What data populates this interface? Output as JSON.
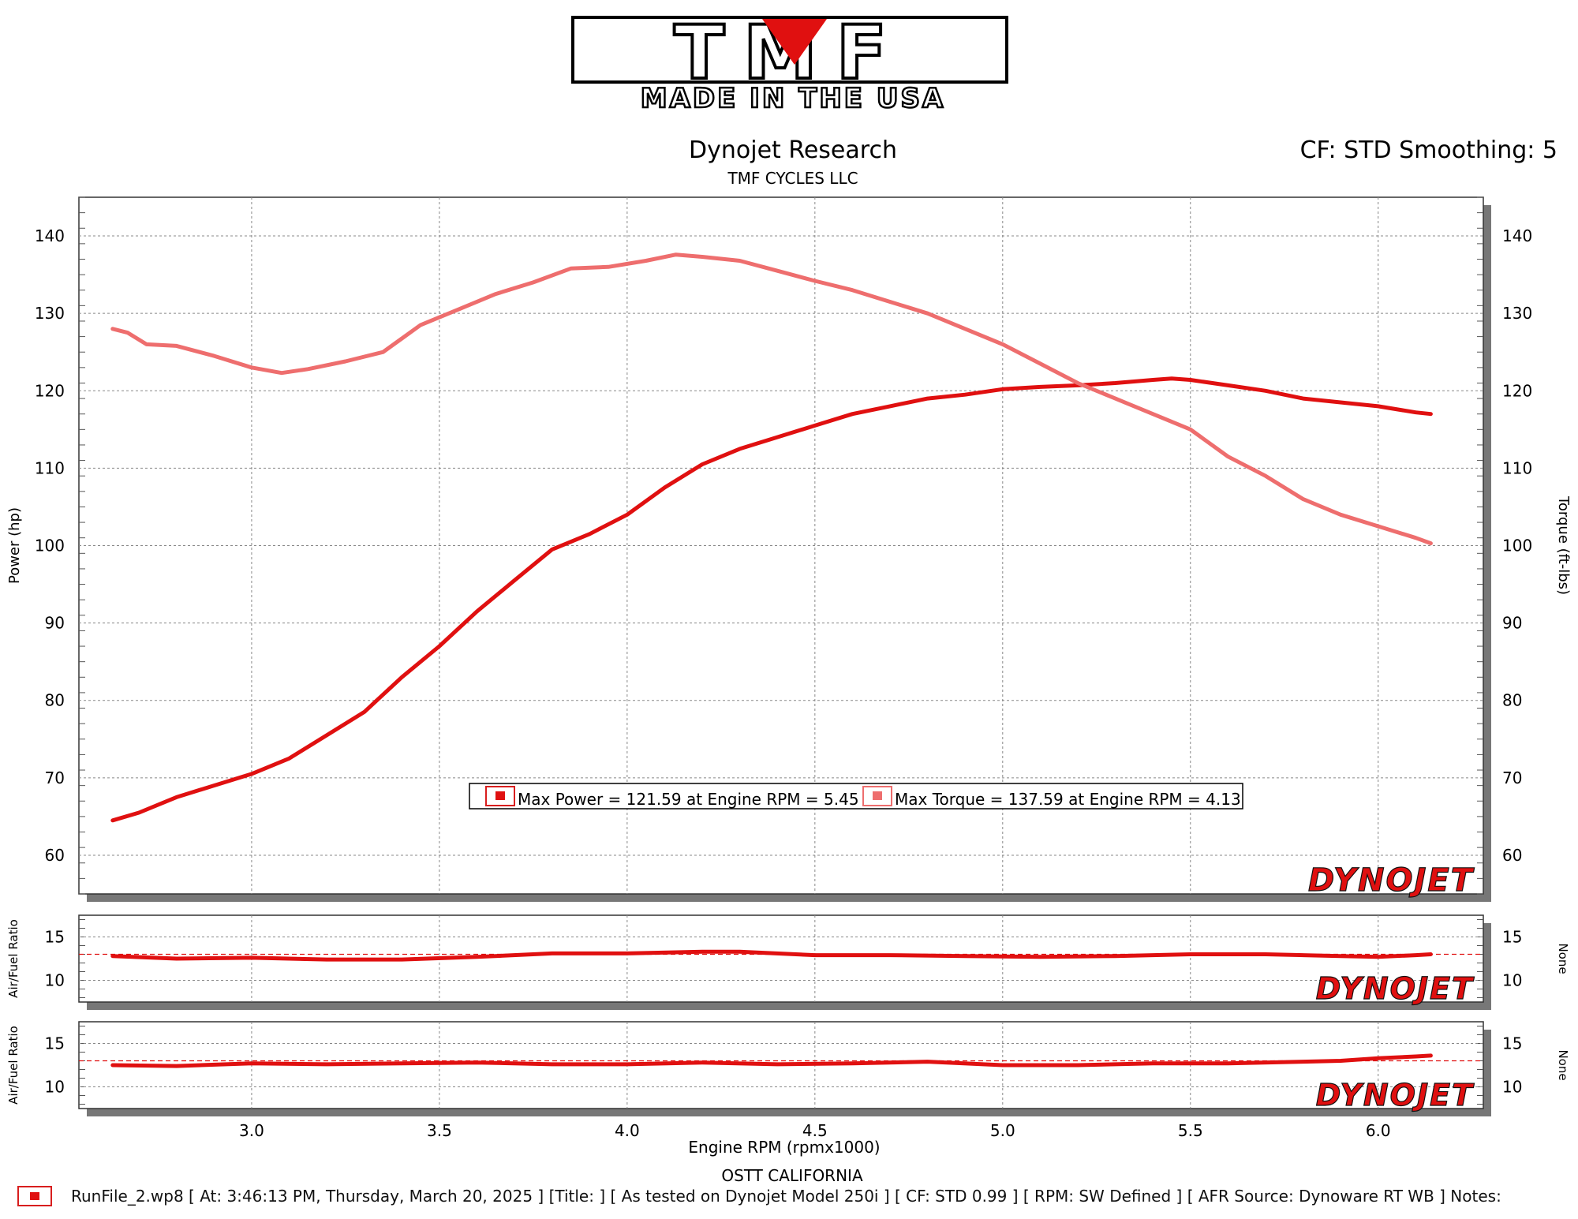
{
  "logo": {
    "brand": "TMF",
    "tagline": "MADE IN THE USA"
  },
  "header": {
    "title": "Dynojet Research",
    "subtitle": "TMF CYCLES LLC",
    "right_label": "CF: STD Smoothing: 5"
  },
  "watermark": "DYNOJET",
  "colors": {
    "power": "#e01010",
    "torque": "#ee6e6e",
    "grid": "#888888",
    "frame_shadow": "#777777"
  },
  "legend": {
    "power_label": "Max Power = 121.59 at Engine RPM = 5.45",
    "torque_label": "Max Torque = 137.59 at Engine RPM = 4.13"
  },
  "footer": {
    "location": "OSTT CALIFORNIA",
    "runfile": "RunFile_2.wp8 [ At: 3:46:13 PM, Thursday, March 20, 2025 ] [Title: ]  [ As tested on Dynojet Model 250i ] [ CF: STD 0.99 ] [ RPM: SW Defined ] [ AFR Source: Dynoware RT WB ] Notes:"
  },
  "chart_data": [
    {
      "type": "line",
      "xlabel": "Engine RPM (rpmx1000)",
      "ylabel": "Power (hp)",
      "y2label": "Torque (ft-lbs)",
      "xlim": [
        2.54,
        6.28
      ],
      "xticks": [
        "3.0",
        "3.5",
        "4.0",
        "4.5",
        "5.0",
        "5.5",
        "6.0"
      ],
      "ylim": [
        55,
        145
      ],
      "yticks": [
        "60",
        "70",
        "80",
        "90",
        "100",
        "110",
        "120",
        "130",
        "140"
      ],
      "grid": true,
      "legend_position": "bottom-center",
      "series": [
        {
          "name": "Max Power",
          "axis": "left",
          "x": [
            2.63,
            2.7,
            2.8,
            2.9,
            3.0,
            3.1,
            3.2,
            3.3,
            3.4,
            3.5,
            3.6,
            3.7,
            3.8,
            3.9,
            4.0,
            4.1,
            4.2,
            4.3,
            4.4,
            4.5,
            4.6,
            4.7,
            4.8,
            4.9,
            5.0,
            5.1,
            5.2,
            5.3,
            5.4,
            5.45,
            5.5,
            5.6,
            5.7,
            5.8,
            5.9,
            6.0,
            6.1,
            6.14
          ],
          "values": [
            64.5,
            65.5,
            67.5,
            69.0,
            70.5,
            72.5,
            75.5,
            78.5,
            83.0,
            87.0,
            91.5,
            95.5,
            99.5,
            101.5,
            104.0,
            107.5,
            110.5,
            112.5,
            114.0,
            115.5,
            117.0,
            118.0,
            119.0,
            119.5,
            120.2,
            120.5,
            120.7,
            121.0,
            121.4,
            121.59,
            121.4,
            120.7,
            120.0,
            119.0,
            118.5,
            118.0,
            117.2,
            117.0
          ]
        },
        {
          "name": "Max Torque",
          "axis": "right",
          "x": [
            2.63,
            2.67,
            2.72,
            2.8,
            2.9,
            3.0,
            3.08,
            3.15,
            3.25,
            3.35,
            3.45,
            3.55,
            3.65,
            3.75,
            3.85,
            3.95,
            4.05,
            4.13,
            4.2,
            4.3,
            4.4,
            4.5,
            4.6,
            4.7,
            4.8,
            4.9,
            5.0,
            5.1,
            5.2,
            5.3,
            5.4,
            5.5,
            5.6,
            5.7,
            5.8,
            5.9,
            6.0,
            6.1,
            6.14
          ],
          "values": [
            128.0,
            127.5,
            126.0,
            125.8,
            124.5,
            123.0,
            122.3,
            122.8,
            123.8,
            125.0,
            128.5,
            130.5,
            132.5,
            134.0,
            135.8,
            136.0,
            136.8,
            137.59,
            137.3,
            136.8,
            135.5,
            134.2,
            133.0,
            131.5,
            130.0,
            128.0,
            126.0,
            123.5,
            121.0,
            119.0,
            117.0,
            115.0,
            111.5,
            109.0,
            106.0,
            104.0,
            102.5,
            101.0,
            100.3
          ]
        }
      ]
    },
    {
      "type": "line",
      "ylabel": "Air/Fuel Ratio",
      "y2label": "None",
      "xlim": [
        2.54,
        6.28
      ],
      "ylim": [
        7.5,
        17.5
      ],
      "yticks": [
        "10",
        "15"
      ],
      "reference_line": 13.0,
      "grid": true,
      "series": [
        {
          "name": "Air/Fuel Ratio",
          "x": [
            2.63,
            2.8,
            3.0,
            3.2,
            3.4,
            3.6,
            3.8,
            4.0,
            4.2,
            4.3,
            4.5,
            4.7,
            4.9,
            5.1,
            5.3,
            5.5,
            5.7,
            5.9,
            6.0,
            6.1,
            6.14
          ],
          "values": [
            12.8,
            12.5,
            12.6,
            12.4,
            12.4,
            12.7,
            13.1,
            13.1,
            13.3,
            13.3,
            12.9,
            12.9,
            12.8,
            12.7,
            12.8,
            13.0,
            13.0,
            12.8,
            12.7,
            12.9,
            13.0
          ]
        }
      ]
    },
    {
      "type": "line",
      "ylabel": "Air/Fuel Ratio",
      "y2label": "None",
      "xlim": [
        2.54,
        6.28
      ],
      "ylim": [
        7.5,
        17.5
      ],
      "yticks": [
        "10",
        "15"
      ],
      "reference_line": 13.0,
      "grid": true,
      "series": [
        {
          "name": "Air/Fuel Ratio",
          "x": [
            2.63,
            2.8,
            3.0,
            3.2,
            3.4,
            3.6,
            3.8,
            4.0,
            4.2,
            4.4,
            4.6,
            4.8,
            5.0,
            5.2,
            5.4,
            5.6,
            5.8,
            5.9,
            6.0,
            6.1,
            6.14
          ],
          "values": [
            12.5,
            12.4,
            12.7,
            12.6,
            12.7,
            12.8,
            12.6,
            12.6,
            12.8,
            12.6,
            12.7,
            12.9,
            12.5,
            12.5,
            12.7,
            12.7,
            12.9,
            13.0,
            13.3,
            13.5,
            13.6
          ]
        }
      ]
    }
  ]
}
